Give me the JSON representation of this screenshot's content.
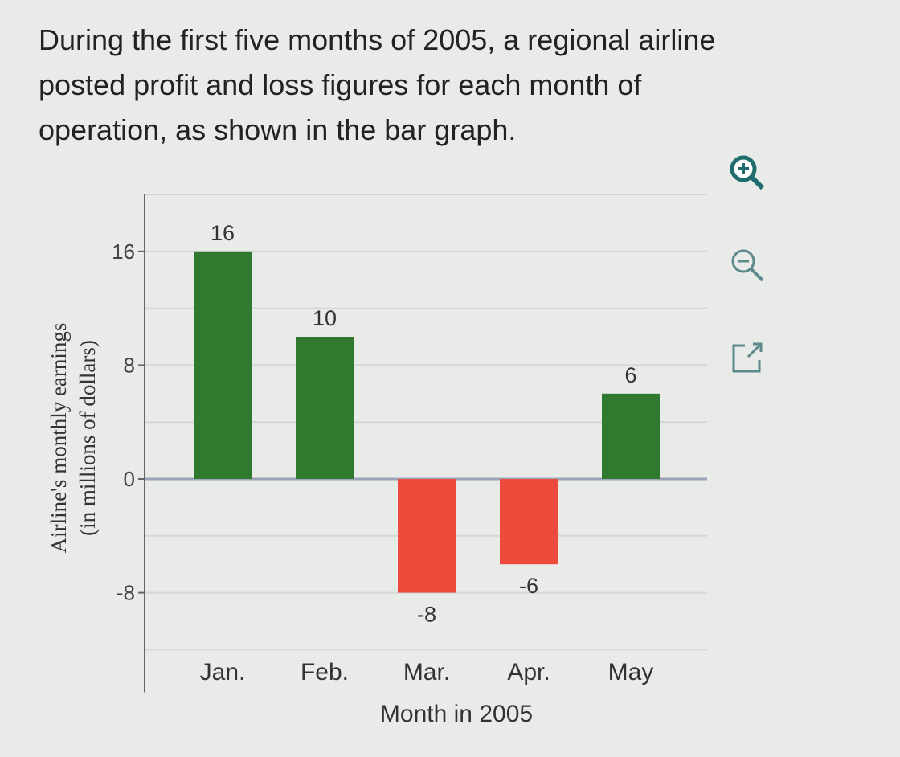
{
  "intro": "During the first five months of 2005, a regional airline posted profit and loss figures for each month of operation, as shown in the bar graph.",
  "tools": {
    "zoom_in": "zoom-in-icon",
    "zoom_out": "zoom-out-icon",
    "popout": "popout-icon"
  },
  "chart_data": {
    "type": "bar",
    "categories": [
      "Jan.",
      "Feb.",
      "Mar.",
      "Apr.",
      "May"
    ],
    "values": [
      16,
      10,
      -8,
      -6,
      6
    ],
    "data_labels": [
      "16",
      "10",
      "-8",
      "-6",
      "6"
    ],
    "xlabel": "Month in 2005",
    "ylabel": "Airline's monthly earnings",
    "ylabel2": "(in millions of dollars)",
    "yticks": [
      16,
      8,
      0,
      -8
    ],
    "ytick_labels": [
      "16",
      "8",
      "0",
      "-8"
    ],
    "ylim": [
      -15,
      20
    ],
    "grid": true,
    "colors": {
      "positive": "#2f7a2f",
      "negative": "#ee4b3c"
    }
  }
}
